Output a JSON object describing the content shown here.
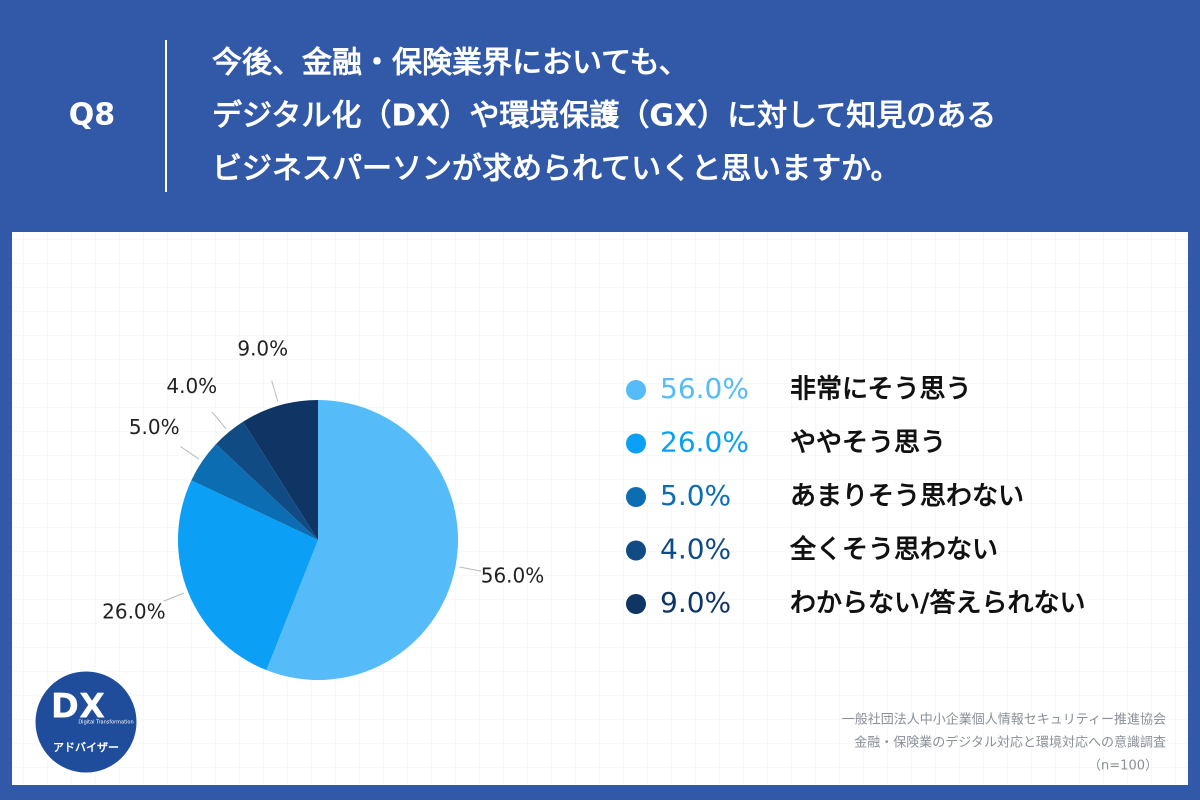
{
  "header": {
    "q_label": "Q8",
    "title_lines": [
      "今後、金融・保険業界においても、",
      "デジタル化（DX）や環境保護（GX）に対して知見のある",
      "ビジネスパーソンが求められていくと思いますか。"
    ]
  },
  "chart_data": {
    "type": "pie",
    "categories": [
      "非常にそう思う",
      "ややそう思う",
      "あまりそう思わない",
      "全くそう思わない",
      "わからない/答えられない"
    ],
    "values": [
      56,
      26,
      5,
      4,
      9
    ],
    "value_labels": [
      "56.0%",
      "26.0%",
      "5.0%",
      "4.0%",
      "9.0%"
    ],
    "colors": [
      "#55bbf9",
      "#0ba0f6",
      "#0c6db3",
      "#114b84",
      "#0f3565"
    ],
    "legend": "right"
  },
  "source": [
    "一般社団法人中小企業個人情報セキュリティー推進協会",
    "金融・保険業のデジタル対応と環境対応への意識調査",
    "（n=100）"
  ],
  "logo": {
    "mark": "DX",
    "sub": "Digital Transformation",
    "name": "アドバイザー"
  }
}
